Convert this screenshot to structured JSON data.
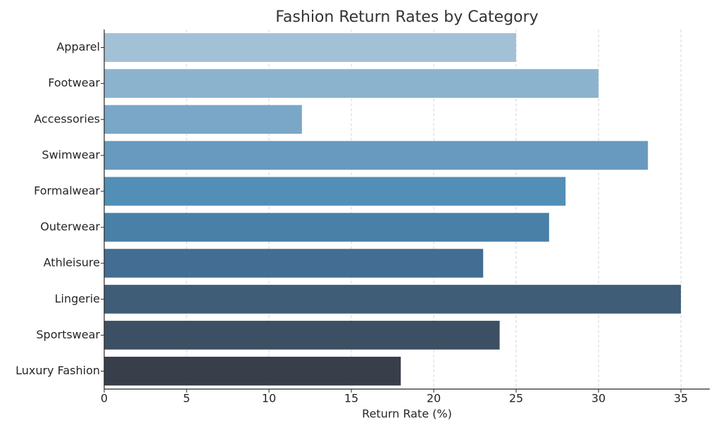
{
  "chart_data": {
    "type": "bar",
    "orientation": "horizontal",
    "title": "Fashion Return Rates by Category",
    "x_label": "Return Rate (%)",
    "categories": [
      "Apparel",
      "Footwear",
      "Accessories",
      "Swimwear",
      "Formalwear",
      "Outerwear",
      "Athleisure",
      "Lingerie",
      "Sportswear",
      "Luxury Fashion"
    ],
    "values": [
      25,
      30,
      12,
      33,
      28,
      27,
      23,
      35,
      24,
      18
    ],
    "colors": [
      "#a3c1d6",
      "#8cb3cd",
      "#7aa7c8",
      "#689abf",
      "#528fb7",
      "#4880a8",
      "#436d92",
      "#3f5d76",
      "#3d4f63",
      "#383f4a"
    ],
    "xlim": [
      0,
      36.75
    ],
    "xticks": [
      0,
      5,
      10,
      15,
      20,
      25,
      30,
      35
    ],
    "grid": true
  }
}
